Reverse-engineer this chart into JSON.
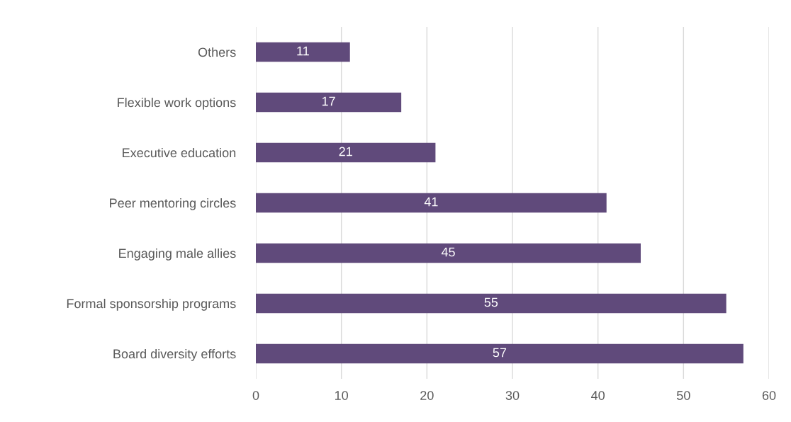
{
  "chart_data": {
    "type": "bar",
    "orientation": "horizontal",
    "categories": [
      "Others",
      "Flexible work options",
      "Executive education",
      "Peer mentoring circles",
      "Engaging male allies",
      "Formal sponsorship programs",
      "Board diversity efforts"
    ],
    "values": [
      11,
      17,
      21,
      41,
      45,
      55,
      57
    ],
    "color": "#604a7b",
    "xlim": [
      0,
      60
    ],
    "xticks": [
      0,
      10,
      20,
      30,
      40,
      50,
      60
    ],
    "grid": "x",
    "data_labels": true,
    "legend": false
  }
}
